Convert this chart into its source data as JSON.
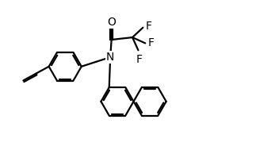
{
  "bg_color": "#ffffff",
  "line_color": "#000000",
  "line_width": 1.6,
  "font_size_atom": 10,
  "fig_width": 3.23,
  "fig_height": 1.94,
  "dpi": 100,
  "xlim": [
    0,
    11
  ],
  "ylim": [
    0,
    6.5
  ]
}
